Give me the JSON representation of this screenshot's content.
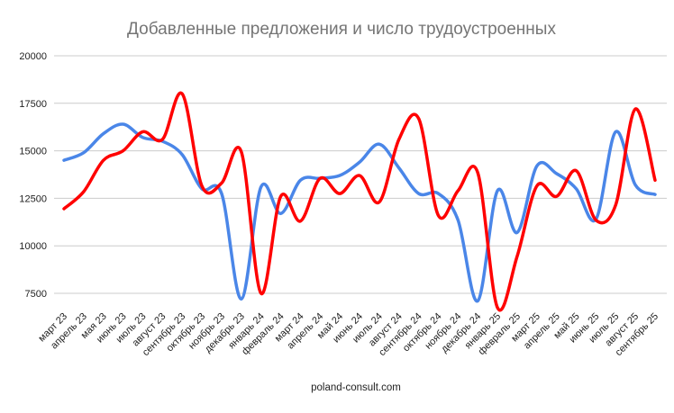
{
  "chart_data": {
    "type": "line",
    "title": "Добавленные предложения и число трудоустроенных",
    "footer": "poland-consult.com",
    "xlabel": "",
    "ylabel": "",
    "ylim": [
      6500,
      20000
    ],
    "yticks": [
      7500,
      10000,
      12500,
      15000,
      17500,
      20000
    ],
    "grid": true,
    "smooth": true,
    "legend": "none",
    "categories": [
      "март 23",
      "апрель 23",
      "мая 23",
      "июнь 23",
      "июль 23",
      "август 23",
      "сентябрь 23",
      "октябрь 23",
      "ноябрь 23",
      "декабрь 23",
      "январь 24",
      "февраль 24",
      "март 24",
      "апрель 24",
      "май 24",
      "июнь 24",
      "июль 24",
      "август 24",
      "сентябрь 24",
      "октябрь 24",
      "ноябрь 24",
      "декабрь 24",
      "январь 25",
      "февраль 25",
      "март 25",
      "апрель 25",
      "май 25",
      "июнь 25",
      "июль 25",
      "август 25",
      "сентябрь 25"
    ],
    "series": [
      {
        "color": "#4a86e8",
        "values": [
          14500,
          14900,
          15900,
          16400,
          15700,
          15500,
          14800,
          13000,
          12750,
          7200,
          13100,
          11700,
          13450,
          13550,
          13700,
          14400,
          15350,
          14100,
          12750,
          12750,
          11350,
          7100,
          12900,
          10700,
          14200,
          13800,
          13000,
          11400,
          16000,
          13200,
          12700
        ]
      },
      {
        "color": "#ff0000",
        "values": [
          11950,
          12850,
          14500,
          15000,
          16000,
          15600,
          18000,
          13150,
          13300,
          14950,
          7500,
          12600,
          11300,
          13550,
          12750,
          13700,
          12300,
          15600,
          16700,
          11600,
          12900,
          13850,
          6750,
          9450,
          13150,
          12600,
          13950,
          11350,
          12150,
          17200,
          13450
        ]
      }
    ]
  }
}
